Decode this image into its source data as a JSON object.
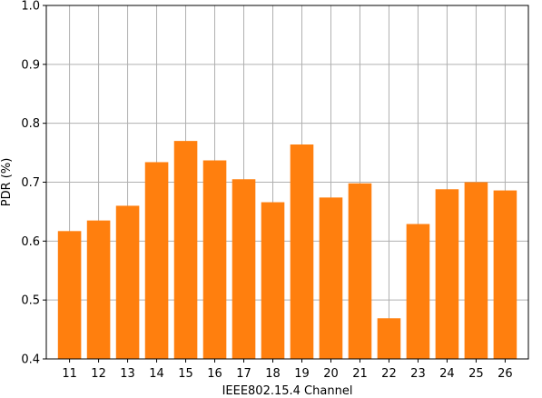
{
  "chart_data": {
    "type": "bar",
    "title": "",
    "xlabel": "IEEE802.15.4 Channel",
    "ylabel": "PDR (%)",
    "categories": [
      "11",
      "12",
      "13",
      "14",
      "15",
      "16",
      "17",
      "18",
      "19",
      "20",
      "21",
      "22",
      "23",
      "24",
      "25",
      "26"
    ],
    "values": [
      0.617,
      0.635,
      0.66,
      0.734,
      0.77,
      0.737,
      0.705,
      0.666,
      0.764,
      0.674,
      0.698,
      0.469,
      0.629,
      0.688,
      0.7,
      0.686
    ],
    "ylim": [
      0.4,
      1.0
    ],
    "yticks": [
      "0.4",
      "0.5",
      "0.6",
      "0.7",
      "0.8",
      "0.9",
      "1.0"
    ],
    "grid": true,
    "bar_color": "#ff7f0e",
    "grid_color": "#b0b0b0",
    "axis_color": "#000000"
  }
}
